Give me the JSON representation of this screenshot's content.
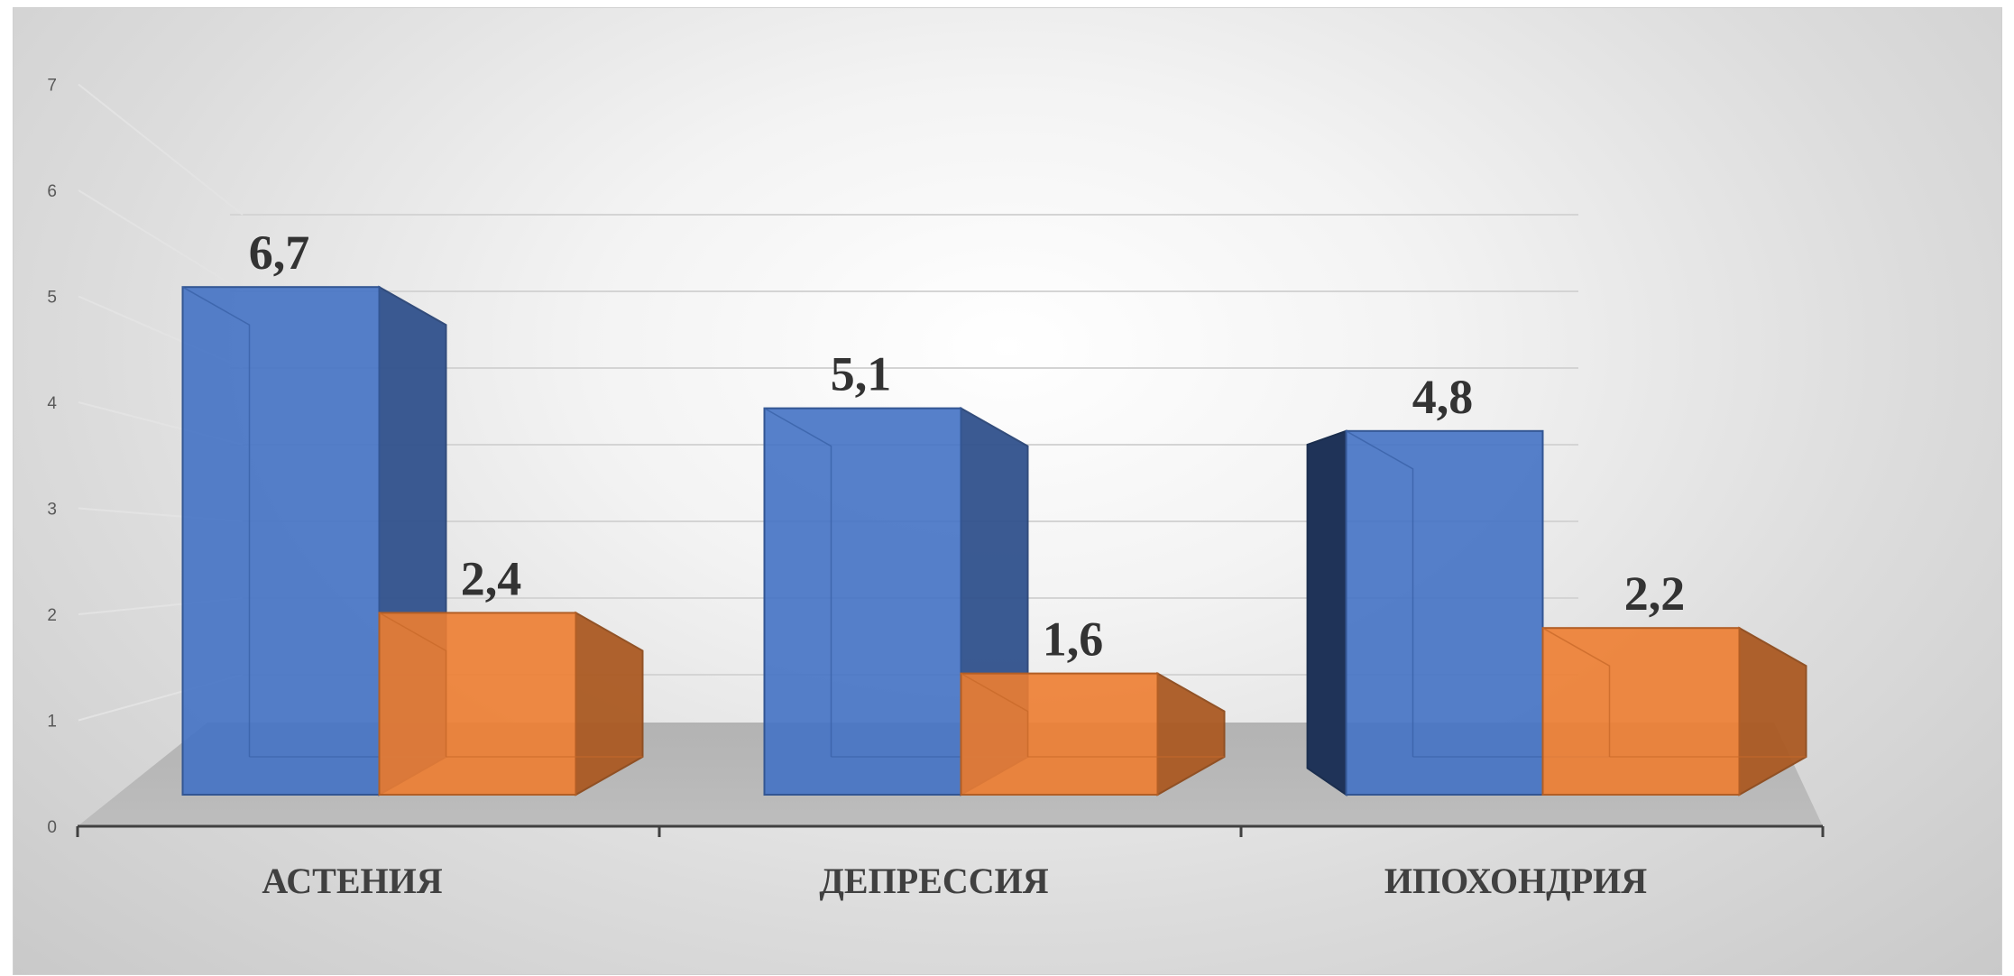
{
  "chart_data": {
    "type": "bar",
    "style": "3d-column",
    "categories": [
      "АСТЕНИЯ",
      "ДЕПРЕССИЯ",
      "ИПОХОНДРИЯ"
    ],
    "series": [
      {
        "values": [
          6.7,
          5.1,
          4.8
        ],
        "labels": [
          "6,7",
          "5,1",
          "4,8"
        ],
        "color": "#4472C4"
      },
      {
        "values": [
          2.4,
          1.6,
          2.2
        ],
        "labels": [
          "2,4",
          "1,6",
          "2,2"
        ],
        "color": "#ED7D31"
      }
    ],
    "title": "",
    "xlabel": "",
    "ylabel": "",
    "ylim": [
      0,
      7
    ],
    "yticks": [
      "0",
      "1",
      "2",
      "3",
      "4",
      "5",
      "6",
      "7"
    ],
    "grid": true,
    "legend": "none"
  }
}
